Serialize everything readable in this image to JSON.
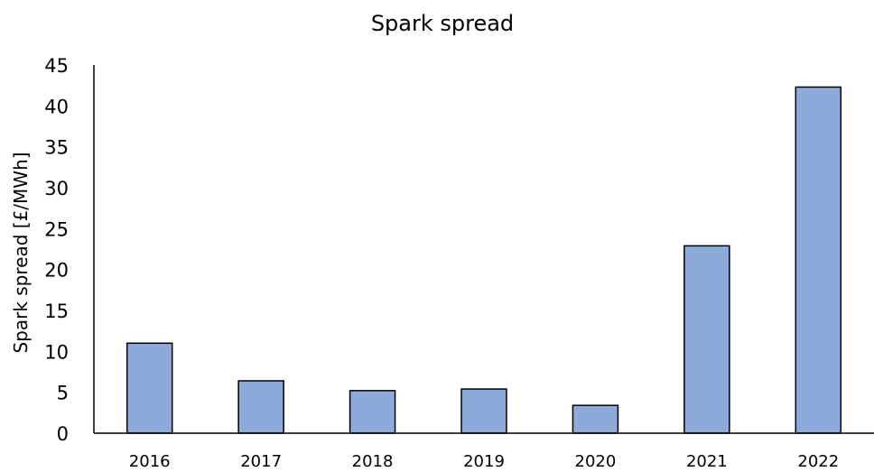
{
  "chart_data": {
    "type": "bar",
    "title": "Spark spread",
    "xlabel": "",
    "ylabel": "Spark spread [£/MWh]",
    "categories": [
      "2016",
      "2017",
      "2018",
      "2019",
      "2020",
      "2021",
      "2022"
    ],
    "values": [
      11.0,
      6.4,
      5.2,
      5.4,
      3.4,
      22.9,
      42.3
    ],
    "ylim": [
      0,
      45
    ],
    "yticks": [
      "0",
      "5",
      "10",
      "15",
      "20",
      "25",
      "30",
      "35",
      "40",
      "45"
    ],
    "grid": false,
    "legend": "none",
    "colors": {
      "bar_fill": "#8eaadb",
      "bar_stroke": "#000000",
      "axis": "#000000"
    }
  }
}
